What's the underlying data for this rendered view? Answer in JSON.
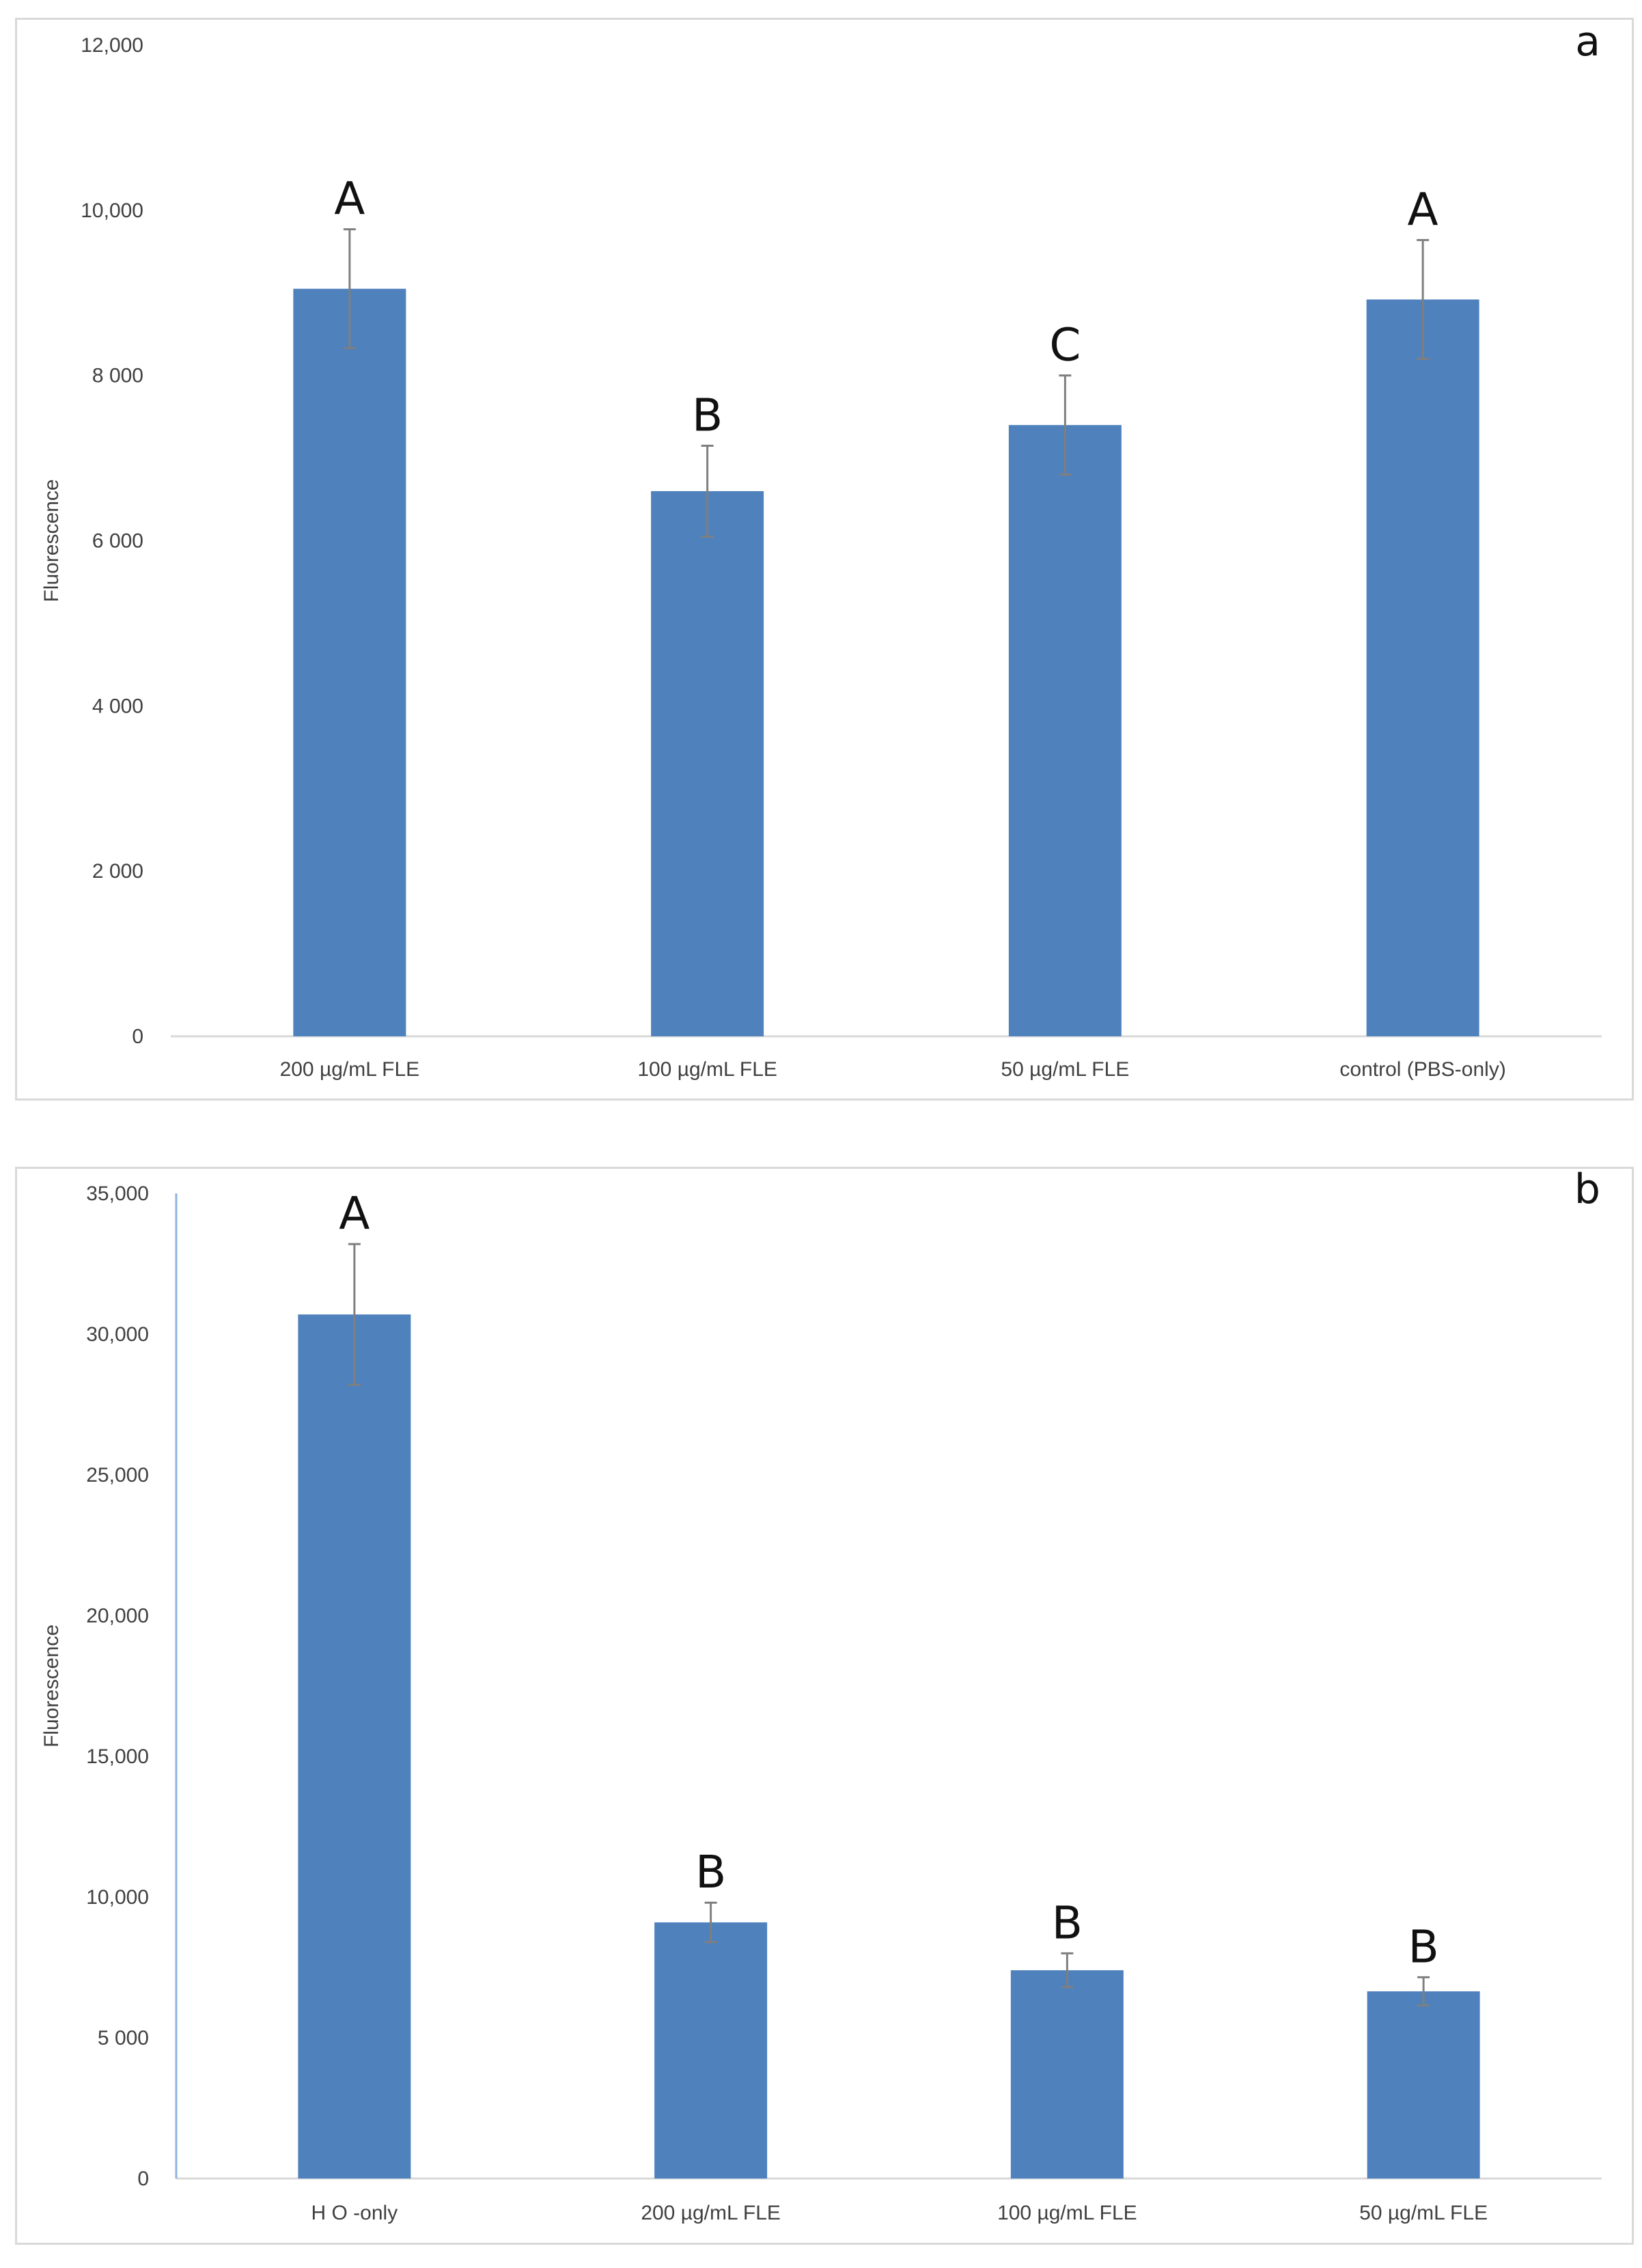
{
  "colors": {
    "bar": "#4f81bd",
    "axis": "#d9d9d9",
    "error": "#7f7f7f",
    "text": "#404040"
  },
  "chart_data": [
    {
      "type": "bar",
      "panel_label": "a",
      "title": "",
      "xlabel": "",
      "ylabel": "Fluorescence",
      "ylim": [
        0,
        12000
      ],
      "y_ticks": [
        0,
        2000,
        4000,
        6000,
        8000,
        10000,
        12000
      ],
      "y_tick_labels": [
        "0",
        "2 000",
        "4 000",
        "6 000",
        "8 000",
        "10,000",
        "12,000"
      ],
      "categories": [
        "200 µg/mL FLE",
        "100 µg/mL FLE",
        "50 µg/mL FLE",
        "control (PBS-only)"
      ],
      "values": [
        9050,
        6600,
        7400,
        8920
      ],
      "errors": [
        720,
        550,
        600,
        720
      ],
      "significance": [
        "A",
        "B",
        "C",
        "A"
      ]
    },
    {
      "type": "bar",
      "panel_label": "b",
      "title": "",
      "xlabel": "",
      "ylabel": "Fluorescence",
      "ylim": [
        0,
        35000
      ],
      "y_ticks": [
        0,
        5000,
        10000,
        15000,
        20000,
        25000,
        30000,
        35000
      ],
      "y_tick_labels": [
        "0",
        "5 000",
        "10,000",
        "15,000",
        "20,000",
        "25,000",
        "30,000",
        "35,000"
      ],
      "categories": [
        "H O -only",
        "200 µg/mL FLE",
        "100 µg/mL FLE",
        "50 µg/mL FLE"
      ],
      "values": [
        30700,
        9100,
        7400,
        6650
      ],
      "errors": [
        2500,
        700,
        600,
        500
      ],
      "significance": [
        "A",
        "B",
        "B",
        "B"
      ]
    }
  ]
}
